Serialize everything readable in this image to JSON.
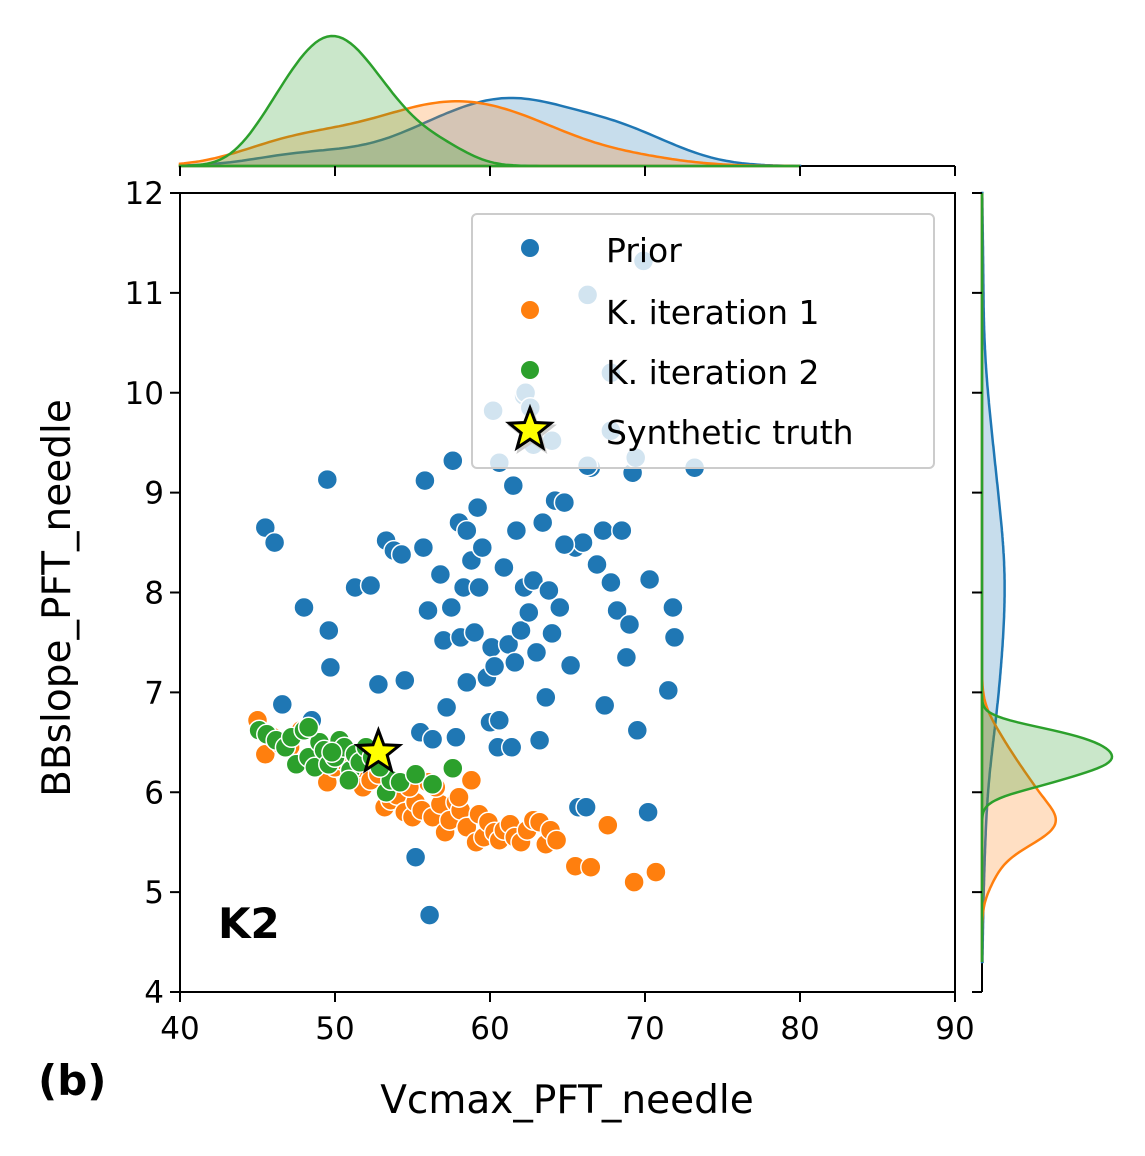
{
  "panel_label": "(b)",
  "chart_data": {
    "type": "scatter",
    "xlabel": "Vcmax_PFT_needle",
    "ylabel": "BBslope_PFT_needle",
    "xlim": [
      40,
      90
    ],
    "ylim": [
      4,
      12
    ],
    "x_ticks": [
      40,
      50,
      60,
      70,
      80,
      90
    ],
    "y_ticks": [
      4,
      5,
      6,
      7,
      8,
      9,
      10,
      11,
      12
    ],
    "annotation": "K2",
    "grid": false,
    "legend_position": "top-right",
    "marginals": {
      "top": "kde of Vcmax_PFT_needle per series (filled)",
      "right": "kde of BBslope_PFT_needle per series (filled)"
    },
    "series": [
      {
        "name": "Prior",
        "color": "#1f77b4",
        "points": [
          [
            45.5,
            8.65
          ],
          [
            46.1,
            8.5
          ],
          [
            46.6,
            6.88
          ],
          [
            48.0,
            7.85
          ],
          [
            48.5,
            6.72
          ],
          [
            49.5,
            9.13
          ],
          [
            49.6,
            7.62
          ],
          [
            49.7,
            7.25
          ],
          [
            51.3,
            8.05
          ],
          [
            52.3,
            8.07
          ],
          [
            52.8,
            7.08
          ],
          [
            53.3,
            8.52
          ],
          [
            53.8,
            8.42
          ],
          [
            54.3,
            8.38
          ],
          [
            54.5,
            7.12
          ],
          [
            55.2,
            5.35
          ],
          [
            55.5,
            6.6
          ],
          [
            55.7,
            8.45
          ],
          [
            55.8,
            9.12
          ],
          [
            56.0,
            7.82
          ],
          [
            56.1,
            4.77
          ],
          [
            56.3,
            6.53
          ],
          [
            56.8,
            8.18
          ],
          [
            57.0,
            7.52
          ],
          [
            57.2,
            6.85
          ],
          [
            57.6,
            9.32
          ],
          [
            57.8,
            6.55
          ],
          [
            58.0,
            8.7
          ],
          [
            58.1,
            7.55
          ],
          [
            58.3,
            8.05
          ],
          [
            58.5,
            8.62
          ],
          [
            58.8,
            8.32
          ],
          [
            59.0,
            7.6
          ],
          [
            59.2,
            8.85
          ],
          [
            59.3,
            8.05
          ],
          [
            59.5,
            8.45
          ],
          [
            59.8,
            7.15
          ],
          [
            60.0,
            6.7
          ],
          [
            60.1,
            7.45
          ],
          [
            60.3,
            7.26
          ],
          [
            60.5,
            6.45
          ],
          [
            60.6,
            6.72
          ],
          [
            60.9,
            8.25
          ],
          [
            61.0,
            5.55
          ],
          [
            61.2,
            7.48
          ],
          [
            61.4,
            6.45
          ],
          [
            61.5,
            9.07
          ],
          [
            61.6,
            7.3
          ],
          [
            61.7,
            8.62
          ],
          [
            62.0,
            7.62
          ],
          [
            62.2,
            8.05
          ],
          [
            62.5,
            7.8
          ],
          [
            62.8,
            8.12
          ],
          [
            63.0,
            7.4
          ],
          [
            63.2,
            6.52
          ],
          [
            63.4,
            8.7
          ],
          [
            63.6,
            6.95
          ],
          [
            63.8,
            8.02
          ],
          [
            64.0,
            7.59
          ],
          [
            64.2,
            8.92
          ],
          [
            64.5,
            7.85
          ],
          [
            64.8,
            8.9
          ],
          [
            65.2,
            7.27
          ],
          [
            65.5,
            8.45
          ],
          [
            65.7,
            5.85
          ],
          [
            66.0,
            8.5
          ],
          [
            66.2,
            5.85
          ],
          [
            66.5,
            9.25
          ],
          [
            66.9,
            8.28
          ],
          [
            67.3,
            8.62
          ],
          [
            67.4,
            6.87
          ],
          [
            67.8,
            8.1
          ],
          [
            68.2,
            7.82
          ],
          [
            68.5,
            8.62
          ],
          [
            68.8,
            7.35
          ],
          [
            69.0,
            7.68
          ],
          [
            69.2,
            9.2
          ],
          [
            69.5,
            6.62
          ],
          [
            70.3,
            8.13
          ],
          [
            70.2,
            5.8
          ],
          [
            71.5,
            7.02
          ],
          [
            71.8,
            7.85
          ],
          [
            71.9,
            7.55
          ],
          [
            73.2,
            9.25
          ],
          [
            60.2,
            9.82
          ],
          [
            62.2,
            9.97
          ],
          [
            64.0,
            9.52
          ],
          [
            66.3,
            10.98
          ],
          [
            67.8,
            10.2
          ],
          [
            69.9,
            11.32
          ],
          [
            60.6,
            9.3
          ],
          [
            67.8,
            9.62
          ],
          [
            69.4,
            9.35
          ],
          [
            62.8,
            9.48
          ],
          [
            64.8,
            8.48
          ],
          [
            62.3,
            10.0
          ],
          [
            62.6,
            9.85
          ],
          [
            66.3,
            9.27
          ],
          [
            57.5,
            7.85
          ],
          [
            58.5,
            7.1
          ]
        ]
      },
      {
        "name": "K. iteration 1",
        "color": "#ff7f0e",
        "points": [
          [
            45.0,
            6.72
          ],
          [
            45.5,
            6.38
          ],
          [
            46.0,
            6.55
          ],
          [
            46.5,
            6.48
          ],
          [
            47.1,
            6.45
          ],
          [
            47.8,
            6.62
          ],
          [
            48.2,
            6.35
          ],
          [
            48.8,
            6.3
          ],
          [
            49.5,
            6.1
          ],
          [
            50.0,
            6.25
          ],
          [
            50.5,
            6.32
          ],
          [
            51.2,
            6.18
          ],
          [
            51.8,
            6.05
          ],
          [
            52.3,
            6.12
          ],
          [
            52.8,
            6.18
          ],
          [
            53.2,
            5.85
          ],
          [
            53.6,
            5.92
          ],
          [
            54.0,
            5.97
          ],
          [
            54.5,
            5.8
          ],
          [
            55.0,
            5.75
          ],
          [
            55.2,
            5.9
          ],
          [
            55.6,
            5.82
          ],
          [
            56.0,
            6.1
          ],
          [
            56.3,
            5.75
          ],
          [
            56.8,
            5.88
          ],
          [
            57.1,
            5.6
          ],
          [
            57.4,
            5.72
          ],
          [
            57.8,
            5.9
          ],
          [
            58.1,
            5.82
          ],
          [
            58.5,
            5.65
          ],
          [
            58.8,
            6.12
          ],
          [
            59.1,
            5.5
          ],
          [
            59.3,
            5.78
          ],
          [
            59.6,
            5.55
          ],
          [
            59.9,
            5.7
          ],
          [
            60.3,
            5.6
          ],
          [
            60.6,
            5.52
          ],
          [
            60.9,
            5.62
          ],
          [
            61.3,
            5.68
          ],
          [
            61.6,
            5.55
          ],
          [
            62.0,
            5.5
          ],
          [
            62.4,
            5.62
          ],
          [
            62.8,
            5.72
          ],
          [
            63.2,
            5.7
          ],
          [
            63.6,
            5.48
          ],
          [
            63.9,
            5.62
          ],
          [
            64.3,
            5.52
          ],
          [
            65.5,
            5.26
          ],
          [
            66.5,
            5.25
          ],
          [
            67.6,
            5.67
          ],
          [
            69.3,
            5.1
          ],
          [
            70.7,
            5.2
          ],
          [
            56.5,
            6.05
          ],
          [
            58.0,
            5.95
          ],
          [
            54.8,
            6.05
          ]
        ]
      },
      {
        "name": "K. iteration 2",
        "color": "#2ca02c",
        "points": [
          [
            45.1,
            6.62
          ],
          [
            45.6,
            6.58
          ],
          [
            46.2,
            6.52
          ],
          [
            46.8,
            6.45
          ],
          [
            47.2,
            6.55
          ],
          [
            47.5,
            6.28
          ],
          [
            48.0,
            6.62
          ],
          [
            48.3,
            6.35
          ],
          [
            48.7,
            6.25
          ],
          [
            49.0,
            6.5
          ],
          [
            49.3,
            6.42
          ],
          [
            49.6,
            6.28
          ],
          [
            50.0,
            6.35
          ],
          [
            50.3,
            6.52
          ],
          [
            50.6,
            6.45
          ],
          [
            51.0,
            6.22
          ],
          [
            51.3,
            6.38
          ],
          [
            51.6,
            6.3
          ],
          [
            52.0,
            6.45
          ],
          [
            52.4,
            6.35
          ],
          [
            53.3,
            6.0
          ],
          [
            53.6,
            6.12
          ],
          [
            54.2,
            6.1
          ],
          [
            55.2,
            6.18
          ],
          [
            56.3,
            6.08
          ],
          [
            57.6,
            6.24
          ],
          [
            48.3,
            6.65
          ],
          [
            49.8,
            6.4
          ],
          [
            50.9,
            6.12
          ],
          [
            52.9,
            6.25
          ]
        ]
      },
      {
        "name": "Synthetic truth",
        "color": "#ffff00",
        "marker": "star",
        "points": [
          [
            52.8,
            6.4
          ],
          [
            62.7,
            9.6
          ]
        ]
      }
    ]
  }
}
